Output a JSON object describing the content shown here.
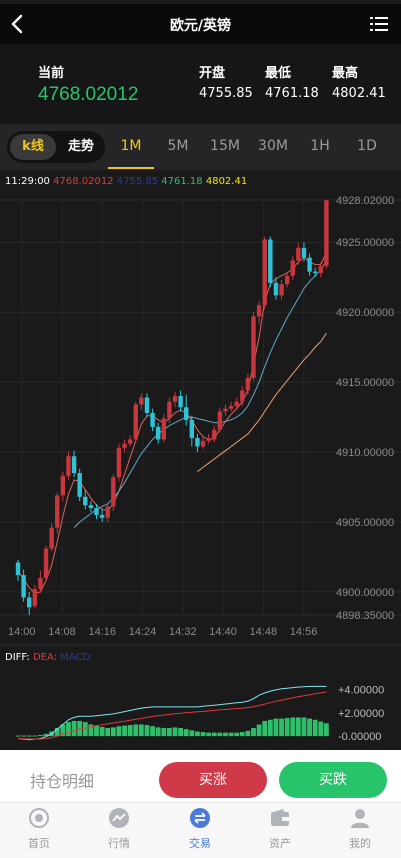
{
  "header": {
    "title": "欧元/英镑"
  },
  "quote": {
    "current_label": "当前",
    "current_value": "4768.02012",
    "open_label": "开盘",
    "open_value": "4755.85",
    "low_label": "最低",
    "low_value": "4761.18",
    "high_label": "最高",
    "high_value": "4802.41"
  },
  "tabs": {
    "kline_label": "k线",
    "trend_label": "走势",
    "periods": [
      "1M",
      "5M",
      "15M",
      "30M",
      "1H",
      "1D"
    ],
    "active_period": "1M"
  },
  "legend": {
    "time": "11:29:00",
    "values": [
      "4768.02012",
      "4755.85",
      "4761.18",
      "4802.41"
    ],
    "colors": [
      "#e0383e",
      "#2d3a9e",
      "#27c46b",
      "#f5e600"
    ]
  },
  "indicator": {
    "diff_label": "DIFF:",
    "dea_label": "DEA:",
    "macd_label": "MACD:"
  },
  "chart_data": {
    "type": "candlestick",
    "price_ticks": [
      "4928.02000",
      "4925.00000",
      "4920.00000",
      "4915.00000",
      "4910.00000",
      "4905.00000",
      "4900.00000",
      "4898.35000"
    ],
    "price_tick_values": [
      4928.02,
      4925,
      4920,
      4915,
      4910,
      4905,
      4900,
      4898.35
    ],
    "ylim": [
      4898.35,
      4928.02
    ],
    "time_ticks": [
      "14:00",
      "14:08",
      "14:16",
      "14:24",
      "14:32",
      "14:40",
      "14:48",
      "14:56"
    ],
    "macd_ticks": [
      "+4.00000",
      "+2.00000",
      "-0.00000"
    ],
    "macd_tick_values": [
      4,
      2,
      0
    ],
    "macd_ylim": [
      -0.5,
      4.8
    ],
    "candles": [
      [
        4902.1,
        4901.2,
        4902.3,
        4900.8
      ],
      [
        4901.2,
        4899.6,
        4901.6,
        4899.3
      ],
      [
        4899.6,
        4898.9,
        4900.0,
        4898.35
      ],
      [
        4899.0,
        4900.2,
        4900.5,
        4898.8
      ],
      [
        4900.2,
        4901.0,
        4901.5,
        4899.9
      ],
      [
        4901.0,
        4903.1,
        4903.3,
        4900.8
      ],
      [
        4903.1,
        4904.6,
        4904.9,
        4902.9
      ],
      [
        4904.6,
        4906.9,
        4907.1,
        4904.2
      ],
      [
        4906.9,
        4908.3,
        4908.6,
        4906.5
      ],
      [
        4908.3,
        4909.7,
        4910.0,
        4908.0
      ],
      [
        4909.7,
        4908.5,
        4910.1,
        4908.2
      ],
      [
        4908.5,
        4906.8,
        4908.8,
        4906.5
      ],
      [
        4906.8,
        4906.2,
        4907.3,
        4905.9
      ],
      [
        4906.2,
        4906.0,
        4906.5,
        4905.7
      ],
      [
        4906.0,
        4905.5,
        4906.3,
        4905.2
      ],
      [
        4905.5,
        4905.3,
        4905.9,
        4905.0
      ],
      [
        4905.3,
        4906.1,
        4906.4,
        4905.0
      ],
      [
        4906.1,
        4908.2,
        4908.4,
        4905.8
      ],
      [
        4908.2,
        4910.3,
        4910.6,
        4907.9
      ],
      [
        4910.3,
        4910.6,
        4910.9,
        4910.0
      ],
      [
        4910.6,
        4910.9,
        4911.2,
        4910.4
      ],
      [
        4910.9,
        4913.4,
        4913.6,
        4910.7
      ],
      [
        4913.4,
        4913.9,
        4914.2,
        4913.0
      ],
      [
        4913.9,
        4912.8,
        4914.2,
        4912.5
      ],
      [
        4912.8,
        4911.8,
        4913.1,
        4911.5
      ],
      [
        4911.8,
        4910.9,
        4912.1,
        4910.6
      ],
      [
        4910.9,
        4912.4,
        4912.7,
        4910.7
      ],
      [
        4912.4,
        4913.6,
        4913.9,
        4912.1
      ],
      [
        4913.6,
        4914.0,
        4914.3,
        4913.2
      ],
      [
        4914.0,
        4913.2,
        4914.4,
        4912.9
      ],
      [
        4913.2,
        4912.3,
        4914.1,
        4911.9
      ],
      [
        4912.3,
        4911.0,
        4912.6,
        4910.4
      ],
      [
        4911.0,
        4910.4,
        4911.3,
        4910.0
      ],
      [
        4910.4,
        4910.8,
        4911.2,
        4910.2
      ],
      [
        4910.8,
        4910.9,
        4911.3,
        4910.6
      ],
      [
        4910.9,
        4911.6,
        4911.9,
        4910.7
      ],
      [
        4911.6,
        4912.9,
        4913.2,
        4911.4
      ],
      [
        4912.9,
        4913.1,
        4913.4,
        4912.6
      ],
      [
        4913.1,
        4913.3,
        4913.6,
        4912.9
      ],
      [
        4913.3,
        4913.6,
        4913.9,
        4913.0
      ],
      [
        4913.6,
        4914.4,
        4914.7,
        4913.3
      ],
      [
        4914.4,
        4915.3,
        4915.6,
        4914.1
      ],
      [
        4915.3,
        4919.7,
        4920.0,
        4915.1
      ],
      [
        4919.7,
        4920.5,
        4920.8,
        4919.2
      ],
      [
        4920.5,
        4925.2,
        4925.4,
        4920.2
      ],
      [
        4925.2,
        4922.1,
        4925.4,
        4921.8
      ],
      [
        4922.1,
        4921.2,
        4922.5,
        4920.9
      ],
      [
        4921.2,
        4922.0,
        4922.3,
        4920.9
      ],
      [
        4922.0,
        4922.6,
        4922.9,
        4921.8
      ],
      [
        4922.6,
        4923.7,
        4924.0,
        4922.3
      ],
      [
        4923.7,
        4924.6,
        4924.9,
        4923.4
      ],
      [
        4924.6,
        4923.9,
        4925.0,
        4923.6
      ],
      [
        4923.9,
        4922.9,
        4924.2,
        4922.6
      ],
      [
        4922.9,
        4922.8,
        4923.2,
        4922.5
      ],
      [
        4922.8,
        4923.3,
        4923.6,
        4922.5
      ],
      [
        4923.3,
        4928.0,
        4928.02,
        4923.1
      ]
    ],
    "ma": [
      {
        "color": "#e0645a",
        "values": [
          4901.5,
          4900.9,
          4900.3,
          4899.9,
          4900.0,
          4900.8,
          4901.9,
          4903.6,
          4905.4,
          4907.0,
          4908.0,
          4907.9,
          4907.3,
          4906.7,
          4906.2,
          4905.9,
          4905.8,
          4906.3,
          4907.2,
          4908.4,
          4909.6,
          4910.8,
          4912.0,
          4912.6,
          4912.6,
          4912.3,
          4912.1,
          4912.4,
          4912.8,
          4913.0,
          4912.8,
          4912.3,
          4911.6,
          4911.1,
          4910.9,
          4911.0,
          4911.6,
          4912.2,
          4912.7,
          4913.1,
          4913.6,
          4914.4,
          4916.3,
          4918.2,
          4920.8,
          4922.0,
          4922.4,
          4922.6,
          4922.8,
          4923.1,
          4923.6,
          4923.9,
          4923.6,
          4923.4,
          4923.4,
          4924.3
        ]
      },
      {
        "color": "#5fa8c8",
        "values": [
          null,
          null,
          null,
          null,
          null,
          null,
          null,
          null,
          null,
          null,
          4904.6,
          4905.0,
          4905.3,
          4905.6,
          4905.9,
          4906.1,
          4906.3,
          4906.7,
          4907.2,
          4907.8,
          4908.5,
          4909.2,
          4909.9,
          4910.4,
          4910.9,
          4911.3,
          4911.6,
          4911.9,
          4912.1,
          4912.3,
          4912.5,
          4912.5,
          4912.4,
          4912.3,
          4912.2,
          4912.1,
          4912.1,
          4912.2,
          4912.3,
          4912.5,
          4912.8,
          4913.3,
          4914.1,
          4915.0,
          4916.1,
          4917.1,
          4918.0,
          4918.8,
          4919.6,
          4920.3,
          4921.0,
          4921.7,
          4922.2,
          4922.6,
          4923.0,
          4923.7
        ]
      },
      {
        "color": "#f0a070",
        "values": [
          null,
          null,
          null,
          null,
          null,
          null,
          null,
          null,
          null,
          null,
          null,
          null,
          null,
          null,
          null,
          null,
          null,
          null,
          null,
          null,
          null,
          null,
          null,
          null,
          null,
          null,
          null,
          null,
          null,
          null,
          null,
          null,
          4908.6,
          4908.9,
          4909.2,
          4909.5,
          4909.8,
          4910.1,
          4910.4,
          4910.7,
          4911.0,
          4911.3,
          4911.8,
          4912.3,
          4912.9,
          4913.5,
          4914.1,
          4914.6,
          4915.1,
          4915.6,
          4916.1,
          4916.6,
          4917.0,
          4917.5,
          4917.9,
          4918.5
        ]
      }
    ],
    "macd_bars": [
      0.05,
      0.05,
      0.05,
      0.05,
      0.1,
      0.2,
      0.4,
      0.7,
      1.0,
      1.2,
      1.3,
      1.3,
      1.2,
      1.0,
      0.9,
      0.8,
      0.7,
      0.75,
      0.85,
      0.9,
      0.95,
      1.0,
      1.0,
      0.95,
      0.85,
      0.75,
      0.7,
      0.7,
      0.75,
      0.7,
      0.6,
      0.5,
      0.4,
      0.35,
      0.3,
      0.3,
      0.3,
      0.3,
      0.3,
      0.3,
      0.35,
      0.45,
      0.7,
      1.0,
      1.3,
      1.4,
      1.5,
      1.5,
      1.55,
      1.6,
      1.6,
      1.6,
      1.5,
      1.4,
      1.25,
      1.1
    ],
    "diff": [
      -0.2,
      -0.25,
      -0.3,
      -0.25,
      -0.2,
      -0.05,
      0.2,
      0.6,
      1.0,
      1.4,
      1.6,
      1.7,
      1.7,
      1.7,
      1.75,
      1.8,
      1.85,
      1.9,
      2.0,
      2.1,
      2.2,
      2.3,
      2.4,
      2.45,
      2.5,
      2.5,
      2.5,
      2.5,
      2.5,
      2.5,
      2.5,
      2.5,
      2.5,
      2.55,
      2.6,
      2.65,
      2.7,
      2.75,
      2.8,
      2.85,
      2.9,
      3.0,
      3.2,
      3.5,
      3.7,
      3.85,
      3.95,
      4.05,
      4.1,
      4.15,
      4.2,
      4.22,
      4.25,
      4.25,
      4.25,
      4.25
    ],
    "dea": [
      -0.2,
      -0.22,
      -0.24,
      -0.24,
      -0.24,
      -0.2,
      -0.12,
      0.0,
      0.15,
      0.3,
      0.45,
      0.6,
      0.7,
      0.8,
      0.9,
      0.98,
      1.05,
      1.12,
      1.2,
      1.28,
      1.36,
      1.44,
      1.52,
      1.6,
      1.68,
      1.74,
      1.8,
      1.86,
      1.92,
      1.96,
      2.0,
      2.04,
      2.08,
      2.12,
      2.16,
      2.2,
      2.24,
      2.28,
      2.32,
      2.36,
      2.4,
      2.45,
      2.52,
      2.62,
      2.74,
      2.86,
      2.98,
      3.08,
      3.18,
      3.28,
      3.38,
      3.46,
      3.54,
      3.62,
      3.7,
      3.78
    ]
  },
  "bottom_actions": {
    "hold_label": "持仓明细",
    "buy_up_label": "买涨",
    "buy_down_label": "买跌"
  },
  "nav": {
    "items": [
      {
        "label": "首页",
        "icon": "home-icon"
      },
      {
        "label": "行情",
        "icon": "market-icon"
      },
      {
        "label": "交易",
        "icon": "trade-icon"
      },
      {
        "label": "资产",
        "icon": "wallet-icon"
      },
      {
        "label": "我的",
        "icon": "user-icon"
      }
    ],
    "active_index": 2
  }
}
